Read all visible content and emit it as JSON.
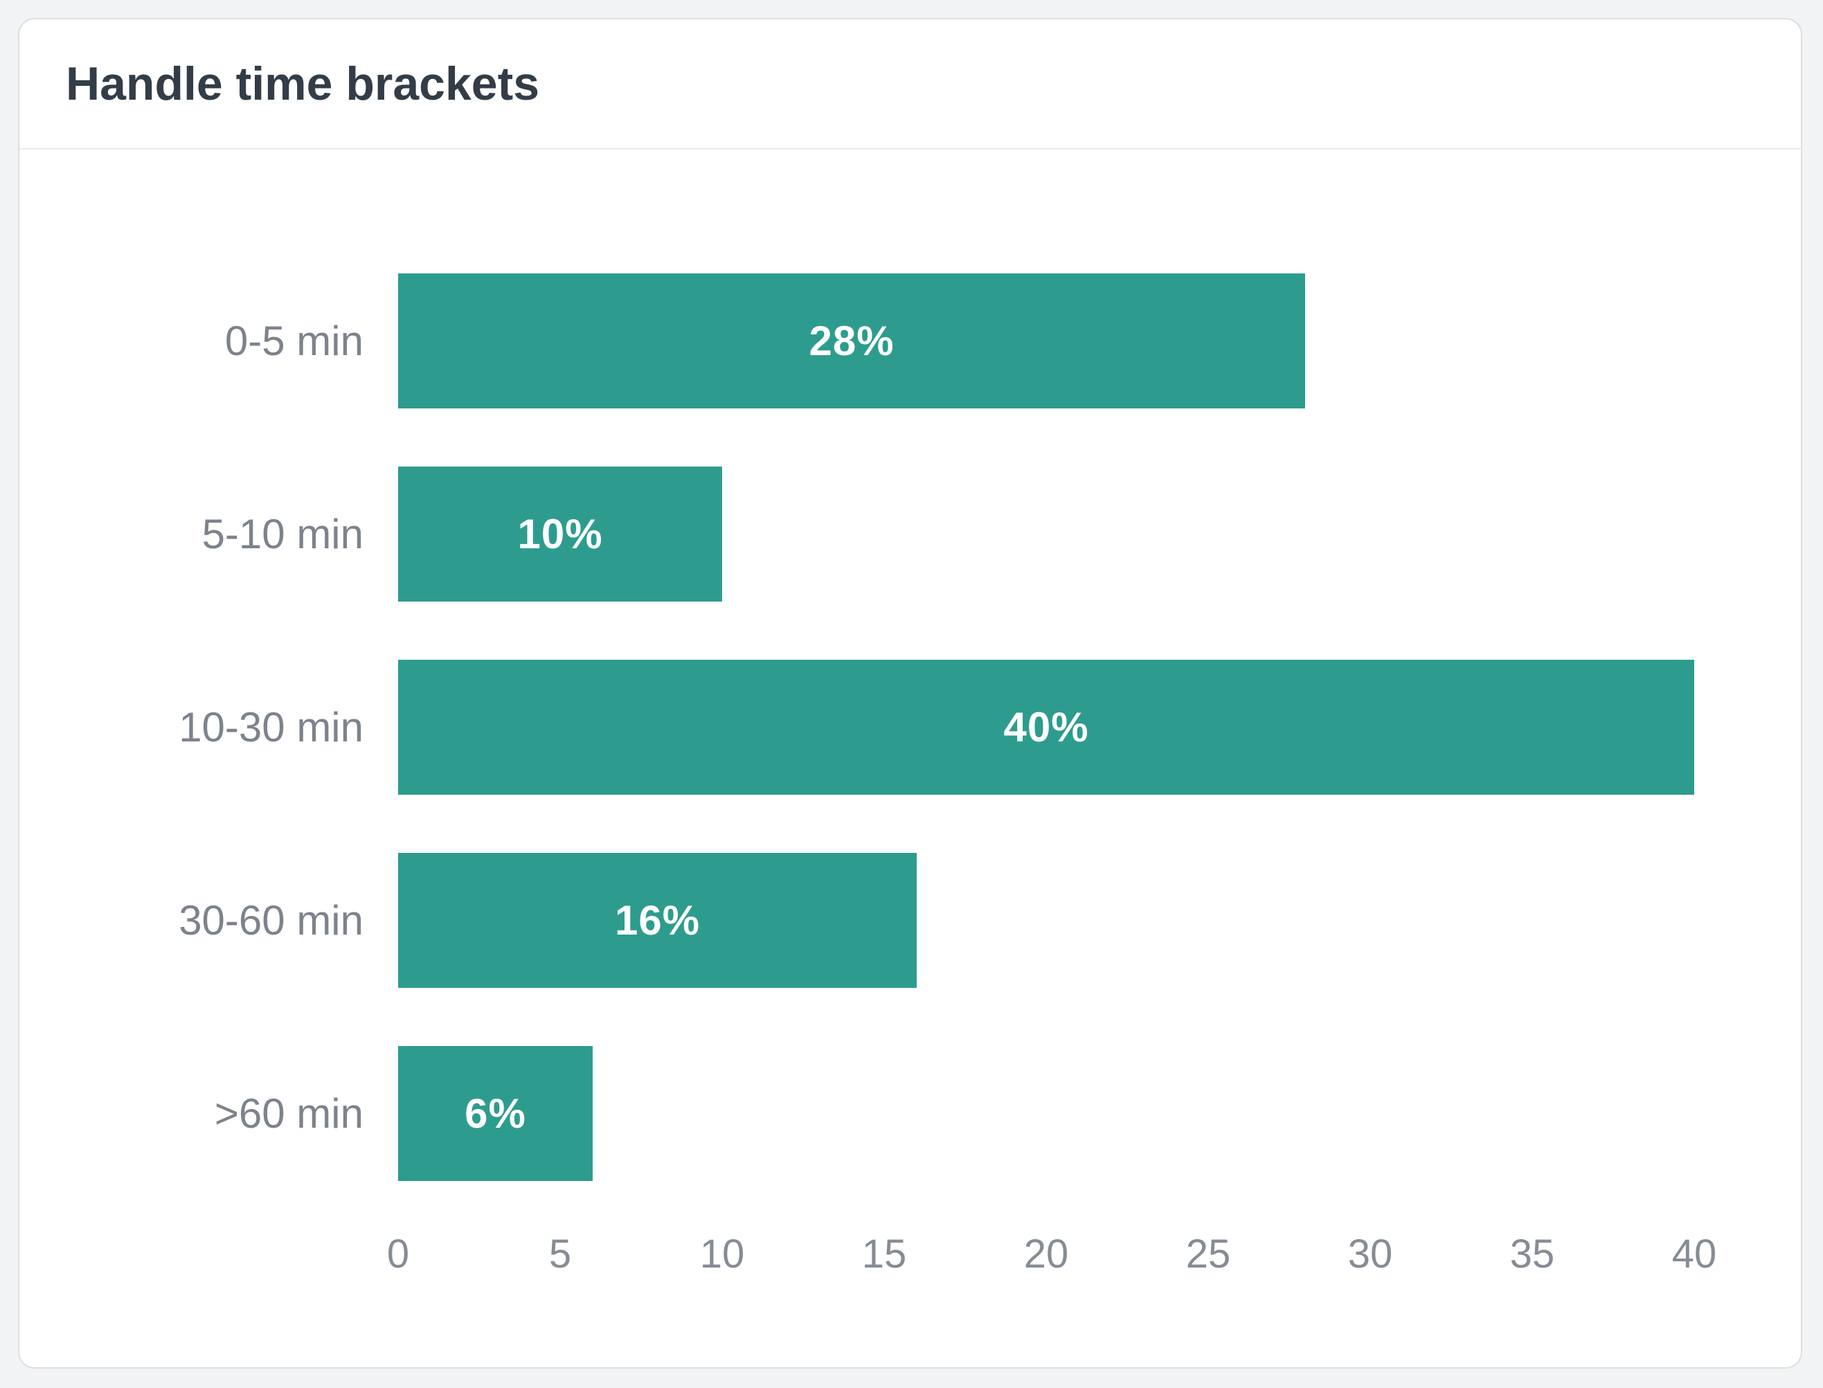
{
  "card": {
    "title": "Handle time brackets"
  },
  "chart_data": {
    "type": "bar",
    "orientation": "horizontal",
    "title": "Handle time brackets",
    "categories": [
      "0-5 min",
      "5-10 min",
      "10-30 min",
      "30-60 min",
      ">60 min"
    ],
    "values": [
      28,
      10,
      40,
      16,
      6
    ],
    "value_labels": [
      "28%",
      "10%",
      "40%",
      "16%",
      "6%"
    ],
    "xlabel": "",
    "ylabel": "",
    "xlim": [
      0,
      40
    ],
    "x_ticks": [
      "0",
      "5",
      "10",
      "15",
      "20",
      "25",
      "30",
      "35",
      "40"
    ],
    "grid": false,
    "legend": "none",
    "value_labels_position": "inside-center",
    "bar_color": "#2d9c8e",
    "value_label_color": "#ffffff",
    "category_label_color": "#7d838c",
    "tick_label_color": "#868c95",
    "title_color": "#333d47",
    "card_background": "#ffffff",
    "card_border_color": "#dcdee1",
    "page_background": "#f2f3f4"
  }
}
